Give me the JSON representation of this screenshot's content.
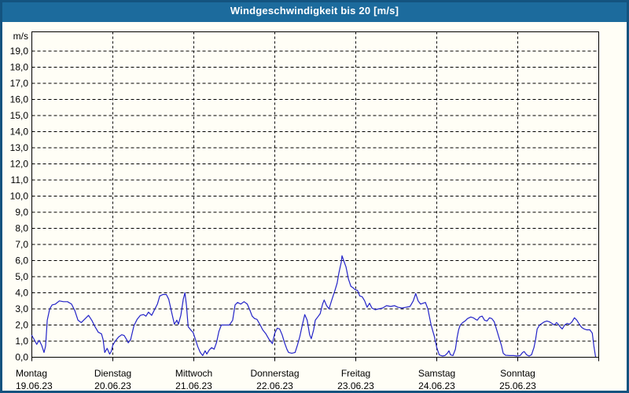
{
  "window": {
    "title": "Windgeschwindigkeit bis 20 [m/s]"
  },
  "colors": {
    "titlebar_bg": "#1c6b9d",
    "window_border": "#14537f",
    "background": "#fffef6",
    "plot_bg": "#fffef6",
    "grid": "#000000",
    "frame": "#000000",
    "line": "#2323c8",
    "text": "#000000",
    "title_text": "#ffffff"
  },
  "chart_data": {
    "type": "line",
    "title": "Windgeschwindigkeit bis 20 [m/s]",
    "ylabel": "m/s",
    "xlabel": "",
    "ylim": [
      0,
      20
    ],
    "grid": "dashed",
    "legend": "none",
    "y_tick_labels": [
      "0,0",
      "1,0",
      "2,0",
      "3,0",
      "4,0",
      "5,0",
      "6,0",
      "7,0",
      "8,0",
      "9,0",
      "10,0",
      "11,0",
      "12,0",
      "13,0",
      "14,0",
      "15,0",
      "16,0",
      "17,0",
      "18,0",
      "19,0"
    ],
    "x_days": [
      {
        "name": "Montag",
        "date": "19.06.23"
      },
      {
        "name": "Dienstag",
        "date": "20.06.23"
      },
      {
        "name": "Mittwoch",
        "date": "21.06.23"
      },
      {
        "name": "Donnerstag",
        "date": "22.06.23"
      },
      {
        "name": "Freitag",
        "date": "23.06.23"
      },
      {
        "name": "Samstag",
        "date": "24.06.23"
      },
      {
        "name": "Sonntag",
        "date": "25.06.23"
      }
    ],
    "series": [
      {
        "name": "Windgeschwindigkeit [m/s]",
        "color": "#2323c8",
        "x_unit": "days since 19.06.23 00:00",
        "points": [
          [
            0.0,
            1.35
          ],
          [
            0.04,
            1.0
          ],
          [
            0.06,
            0.8
          ],
          [
            0.09,
            1.05
          ],
          [
            0.12,
            0.75
          ],
          [
            0.15,
            0.3
          ],
          [
            0.17,
            0.7
          ],
          [
            0.19,
            2.3
          ],
          [
            0.22,
            3.0
          ],
          [
            0.25,
            3.25
          ],
          [
            0.29,
            3.3
          ],
          [
            0.34,
            3.5
          ],
          [
            0.39,
            3.45
          ],
          [
            0.44,
            3.45
          ],
          [
            0.49,
            3.3
          ],
          [
            0.53,
            2.9
          ],
          [
            0.57,
            2.3
          ],
          [
            0.61,
            2.15
          ],
          [
            0.66,
            2.4
          ],
          [
            0.7,
            2.6
          ],
          [
            0.74,
            2.3
          ],
          [
            0.78,
            1.9
          ],
          [
            0.82,
            1.55
          ],
          [
            0.86,
            1.45
          ],
          [
            0.88,
            1.1
          ],
          [
            0.9,
            0.3
          ],
          [
            0.93,
            0.55
          ],
          [
            0.96,
            0.2
          ],
          [
            0.98,
            0.35
          ],
          [
            1.0,
            0.75
          ],
          [
            1.03,
            1.0
          ],
          [
            1.07,
            1.25
          ],
          [
            1.11,
            1.4
          ],
          [
            1.14,
            1.35
          ],
          [
            1.17,
            1.1
          ],
          [
            1.19,
            0.9
          ],
          [
            1.22,
            1.1
          ],
          [
            1.26,
            1.95
          ],
          [
            1.3,
            2.35
          ],
          [
            1.34,
            2.6
          ],
          [
            1.38,
            2.65
          ],
          [
            1.41,
            2.55
          ],
          [
            1.44,
            2.8
          ],
          [
            1.48,
            2.6
          ],
          [
            1.51,
            2.9
          ],
          [
            1.55,
            3.3
          ],
          [
            1.58,
            3.8
          ],
          [
            1.62,
            3.9
          ],
          [
            1.66,
            3.9
          ],
          [
            1.69,
            3.6
          ],
          [
            1.73,
            2.7
          ],
          [
            1.76,
            2.05
          ],
          [
            1.79,
            2.3
          ],
          [
            1.81,
            2.05
          ],
          [
            1.84,
            2.6
          ],
          [
            1.87,
            3.6
          ],
          [
            1.89,
            4.0
          ],
          [
            1.91,
            3.2
          ],
          [
            1.93,
            1.9
          ],
          [
            1.97,
            1.65
          ],
          [
            1.99,
            1.55
          ],
          [
            2.02,
            1.1
          ],
          [
            2.05,
            0.65
          ],
          [
            2.08,
            0.3
          ],
          [
            2.11,
            0.1
          ],
          [
            2.14,
            0.4
          ],
          [
            2.16,
            0.2
          ],
          [
            2.19,
            0.45
          ],
          [
            2.22,
            0.6
          ],
          [
            2.25,
            0.5
          ],
          [
            2.28,
            0.9
          ],
          [
            2.31,
            1.6
          ],
          [
            2.34,
            2.0
          ],
          [
            2.39,
            2.0
          ],
          [
            2.44,
            2.0
          ],
          [
            2.48,
            2.3
          ],
          [
            2.51,
            3.25
          ],
          [
            2.54,
            3.4
          ],
          [
            2.58,
            3.3
          ],
          [
            2.62,
            3.45
          ],
          [
            2.66,
            3.3
          ],
          [
            2.69,
            2.95
          ],
          [
            2.72,
            2.55
          ],
          [
            2.75,
            2.4
          ],
          [
            2.78,
            2.35
          ],
          [
            2.82,
            2.0
          ],
          [
            2.85,
            1.7
          ],
          [
            2.89,
            1.45
          ],
          [
            2.93,
            1.1
          ],
          [
            2.97,
            0.85
          ],
          [
            3.0,
            1.5
          ],
          [
            3.03,
            1.8
          ],
          [
            3.06,
            1.75
          ],
          [
            3.09,
            1.4
          ],
          [
            3.12,
            0.9
          ],
          [
            3.15,
            0.5
          ],
          [
            3.17,
            0.3
          ],
          [
            3.21,
            0.25
          ],
          [
            3.25,
            0.3
          ],
          [
            3.28,
            0.75
          ],
          [
            3.31,
            1.3
          ],
          [
            3.34,
            2.0
          ],
          [
            3.37,
            2.65
          ],
          [
            3.4,
            2.3
          ],
          [
            3.43,
            1.4
          ],
          [
            3.45,
            1.15
          ],
          [
            3.48,
            1.7
          ],
          [
            3.5,
            2.3
          ],
          [
            3.53,
            2.5
          ],
          [
            3.56,
            2.7
          ],
          [
            3.59,
            3.3
          ],
          [
            3.61,
            3.55
          ],
          [
            3.64,
            3.2
          ],
          [
            3.67,
            3.0
          ],
          [
            3.7,
            3.5
          ],
          [
            3.74,
            4.1
          ],
          [
            3.77,
            4.6
          ],
          [
            3.79,
            5.2
          ],
          [
            3.82,
            5.9
          ],
          [
            3.83,
            6.3
          ],
          [
            3.85,
            6.0
          ],
          [
            3.88,
            5.6
          ],
          [
            3.91,
            4.85
          ],
          [
            3.94,
            4.4
          ],
          [
            3.97,
            4.3
          ],
          [
            3.99,
            4.2
          ],
          [
            4.02,
            4.15
          ],
          [
            4.05,
            3.8
          ],
          [
            4.08,
            3.75
          ],
          [
            4.11,
            3.5
          ],
          [
            4.14,
            3.1
          ],
          [
            4.17,
            3.35
          ],
          [
            4.2,
            3.05
          ],
          [
            4.24,
            2.95
          ],
          [
            4.28,
            3.0
          ],
          [
            4.33,
            3.05
          ],
          [
            4.38,
            3.2
          ],
          [
            4.43,
            3.15
          ],
          [
            4.48,
            3.2
          ],
          [
            4.52,
            3.1
          ],
          [
            4.57,
            3.05
          ],
          [
            4.62,
            3.1
          ],
          [
            4.67,
            3.15
          ],
          [
            4.71,
            3.5
          ],
          [
            4.74,
            3.95
          ],
          [
            4.77,
            3.5
          ],
          [
            4.8,
            3.3
          ],
          [
            4.83,
            3.35
          ],
          [
            4.86,
            3.4
          ],
          [
            4.89,
            3.0
          ],
          [
            4.93,
            2.0
          ],
          [
            4.97,
            1.3
          ],
          [
            5.0,
            0.6
          ],
          [
            5.03,
            0.15
          ],
          [
            5.07,
            0.08
          ],
          [
            5.1,
            0.1
          ],
          [
            5.13,
            0.25
          ],
          [
            5.15,
            0.4
          ],
          [
            5.17,
            0.15
          ],
          [
            5.2,
            0.1
          ],
          [
            5.23,
            0.5
          ],
          [
            5.25,
            1.2
          ],
          [
            5.27,
            1.7
          ],
          [
            5.29,
            2.0
          ],
          [
            5.32,
            2.15
          ],
          [
            5.35,
            2.25
          ],
          [
            5.38,
            2.4
          ],
          [
            5.42,
            2.5
          ],
          [
            5.45,
            2.45
          ],
          [
            5.48,
            2.35
          ],
          [
            5.5,
            2.3
          ],
          [
            5.53,
            2.5
          ],
          [
            5.56,
            2.55
          ],
          [
            5.59,
            2.3
          ],
          [
            5.62,
            2.25
          ],
          [
            5.65,
            2.45
          ],
          [
            5.68,
            2.4
          ],
          [
            5.71,
            2.2
          ],
          [
            5.74,
            1.7
          ],
          [
            5.77,
            1.2
          ],
          [
            5.8,
            0.7
          ],
          [
            5.82,
            0.25
          ],
          [
            5.85,
            0.12
          ],
          [
            5.9,
            0.1
          ],
          [
            5.95,
            0.1
          ],
          [
            5.99,
            0.08
          ],
          [
            6.03,
            0.1
          ],
          [
            6.06,
            0.3
          ],
          [
            6.08,
            0.35
          ],
          [
            6.11,
            0.15
          ],
          [
            6.14,
            0.08
          ],
          [
            6.17,
            0.15
          ],
          [
            6.2,
            0.6
          ],
          [
            6.22,
            1.1
          ],
          [
            6.24,
            1.75
          ],
          [
            6.27,
            2.0
          ],
          [
            6.3,
            2.1
          ],
          [
            6.33,
            2.2
          ],
          [
            6.36,
            2.25
          ],
          [
            6.39,
            2.2
          ],
          [
            6.42,
            2.1
          ],
          [
            6.45,
            2.0
          ],
          [
            6.48,
            2.15
          ],
          [
            6.5,
            2.05
          ],
          [
            6.53,
            1.85
          ],
          [
            6.55,
            1.75
          ],
          [
            6.58,
            2.0
          ],
          [
            6.61,
            2.1
          ],
          [
            6.64,
            2.05
          ],
          [
            6.67,
            2.2
          ],
          [
            6.7,
            2.45
          ],
          [
            6.73,
            2.3
          ],
          [
            6.76,
            2.05
          ],
          [
            6.79,
            1.85
          ],
          [
            6.82,
            1.75
          ],
          [
            6.85,
            1.7
          ],
          [
            6.89,
            1.7
          ],
          [
            6.92,
            1.5
          ],
          [
            6.94,
            0.7
          ],
          [
            6.96,
            0.05
          ]
        ]
      }
    ]
  }
}
